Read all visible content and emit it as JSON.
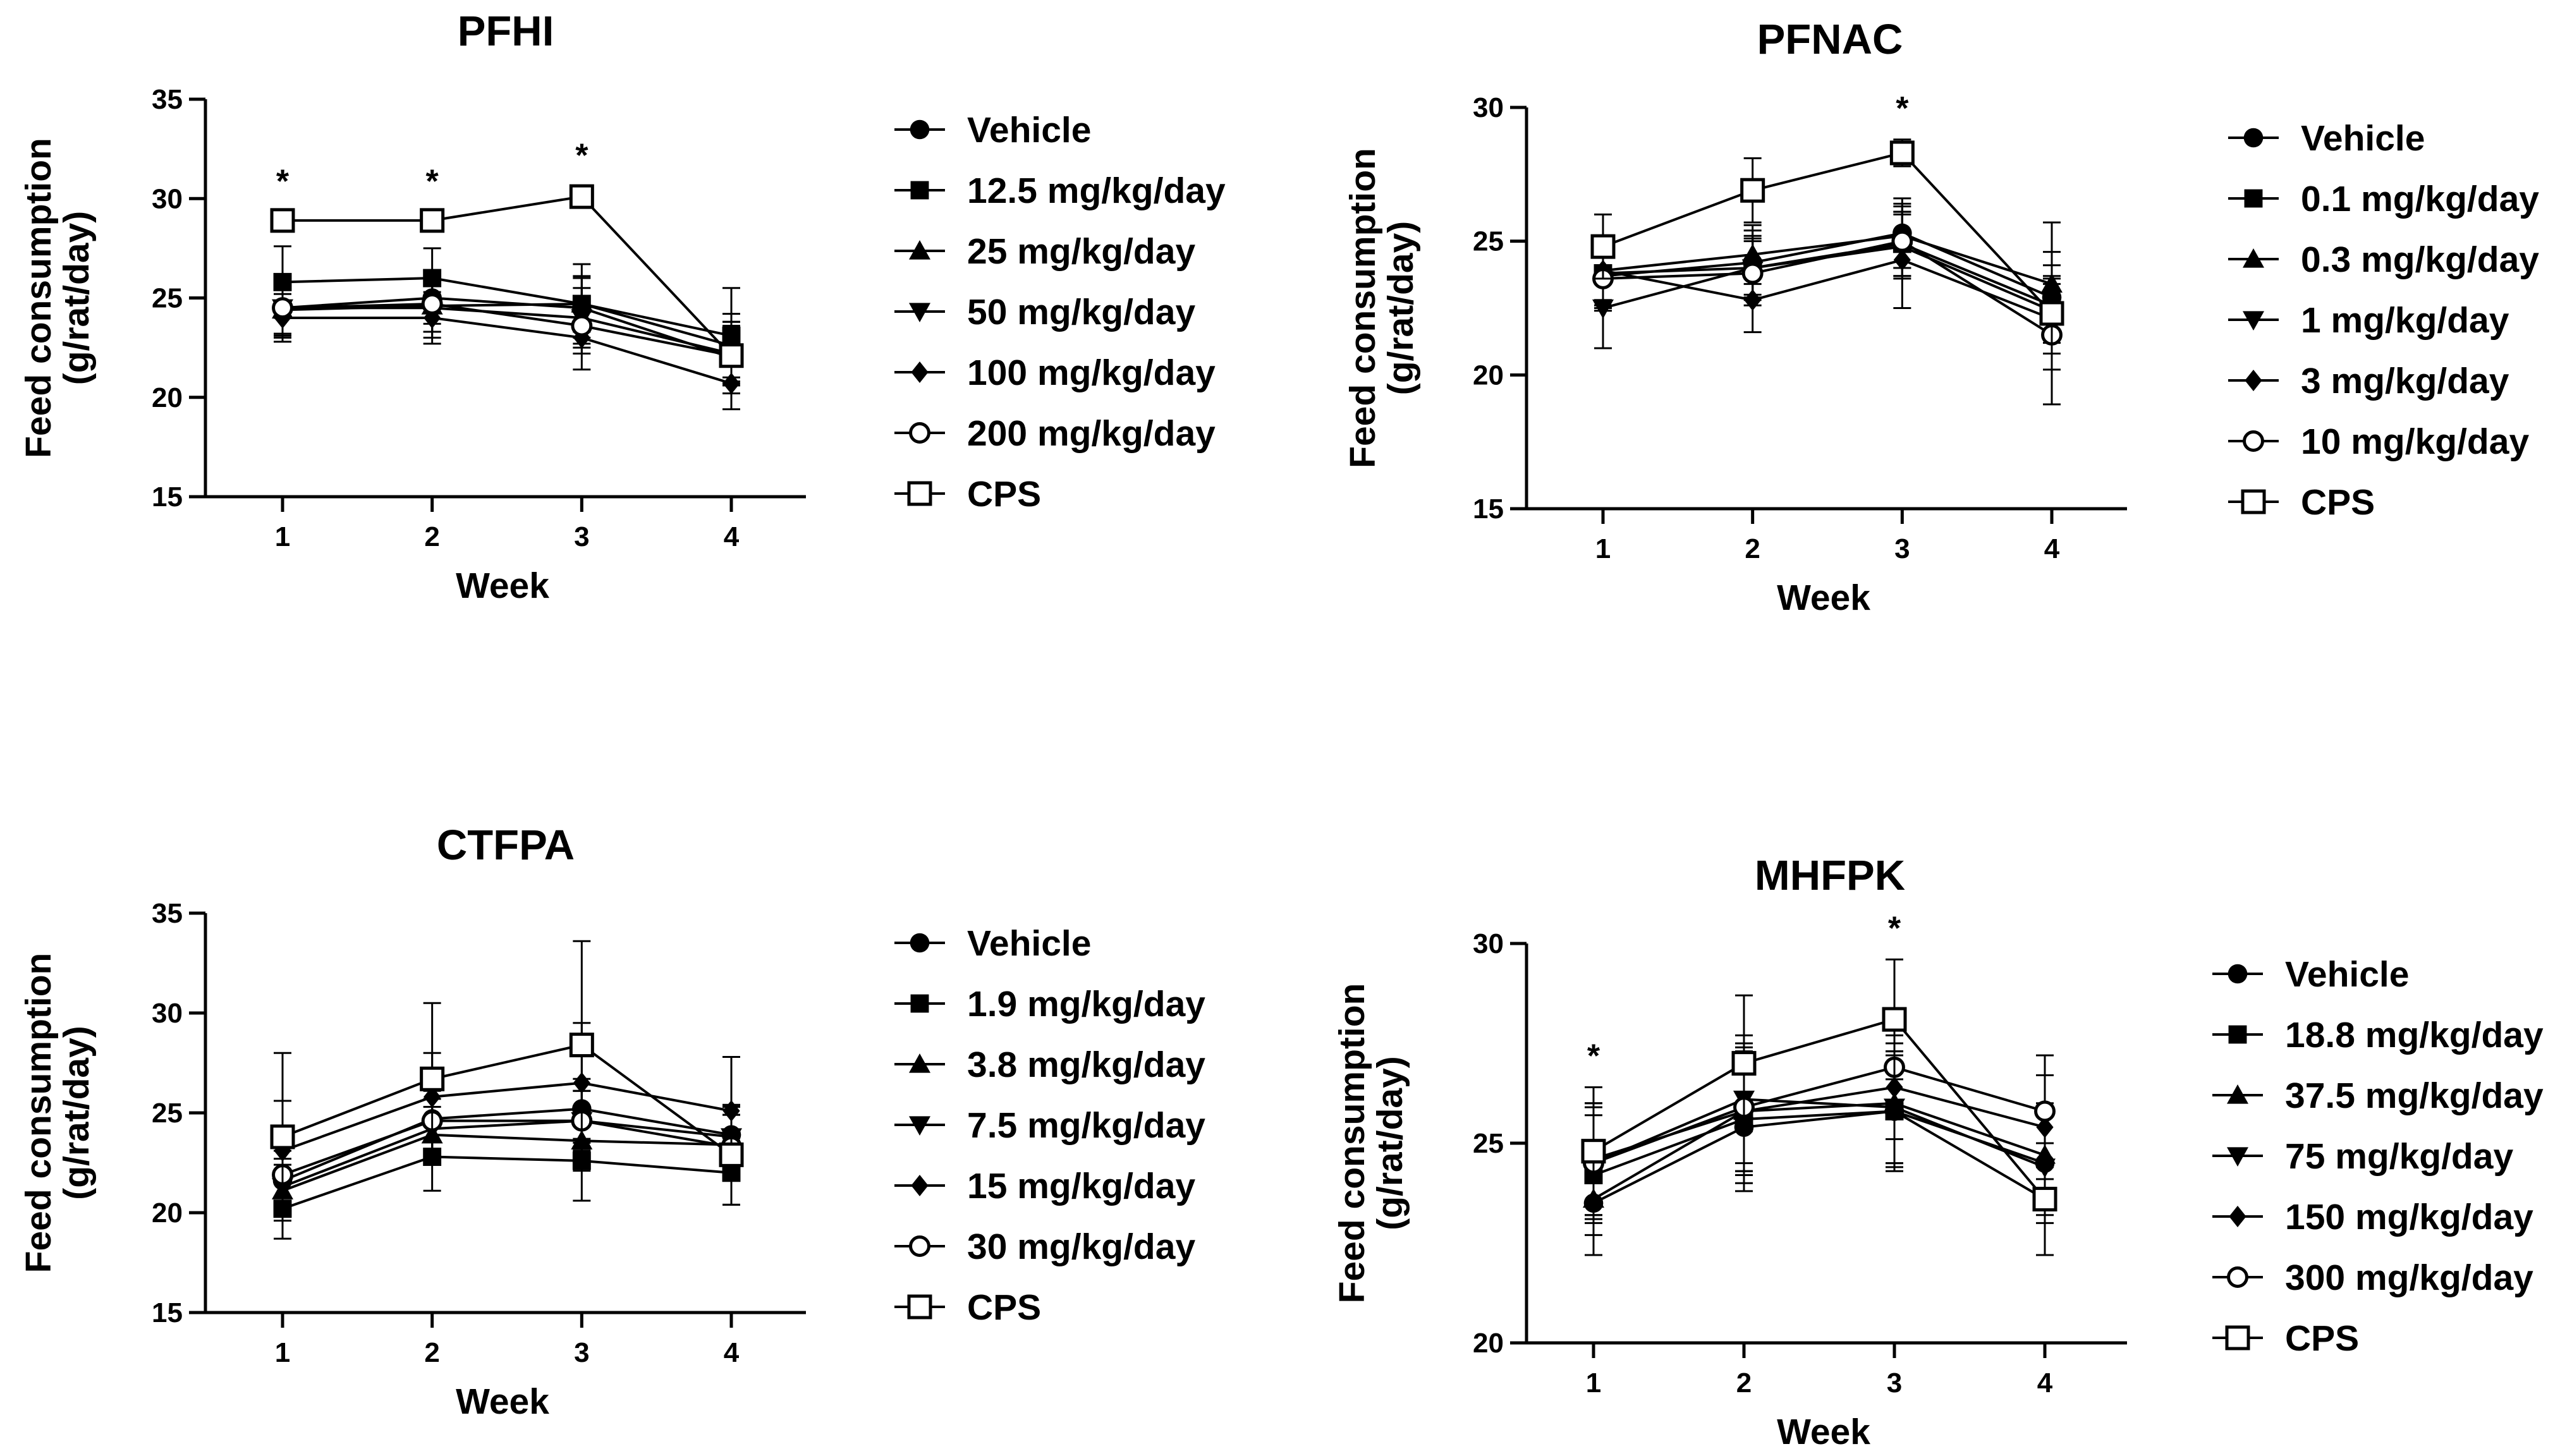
{
  "chart_data": [
    {
      "type": "line",
      "title": "PFHI",
      "xlabel": "Week",
      "ylabel": "Feed consumption\n(g/rat/day)",
      "x": [
        1,
        2,
        3,
        4
      ],
      "ylim": [
        15,
        35
      ],
      "yticks": [
        15,
        20,
        25,
        30,
        35
      ],
      "significance_markers": [
        "*",
        "*",
        "*",
        ""
      ],
      "series": [
        {
          "name": "Vehicle",
          "marker": "circle-filled",
          "values": [
            24.5,
            25.0,
            24.5,
            22.0
          ],
          "errors": [
            1.5,
            1.3,
            1.5,
            1.8
          ]
        },
        {
          "name": "12.5 mg/kg/day",
          "marker": "square-filled",
          "values": [
            25.8,
            26.0,
            24.7,
            23.1
          ],
          "errors": [
            1.8,
            1.5,
            2.0,
            2.4
          ]
        },
        {
          "name": "25 mg/kg/day",
          "marker": "triangle-up-filled",
          "values": [
            24.4,
            24.6,
            24.7,
            22.6
          ],
          "errors": [
            1.3,
            1.3,
            1.4,
            1.6
          ]
        },
        {
          "name": "50 mg/kg/day",
          "marker": "triangle-down-filled",
          "values": [
            24.5,
            24.5,
            24.0,
            22.2
          ],
          "errors": [
            1.3,
            1.5,
            1.5,
            1.6
          ]
        },
        {
          "name": "100 mg/kg/day",
          "marker": "diamond-filled",
          "values": [
            24.0,
            24.0,
            23.0,
            20.7
          ],
          "errors": [
            1.2,
            1.3,
            1.6,
            1.3
          ]
        },
        {
          "name": "200 mg/kg/day",
          "marker": "circle-open",
          "values": [
            24.5,
            24.7,
            23.6,
            22.1
          ],
          "errors": [
            1.3,
            1.4,
            1.4,
            1.5
          ]
        },
        {
          "name": "CPS",
          "marker": "square-open",
          "values": [
            28.9,
            28.9,
            30.1,
            22.1
          ],
          "errors": [
            0.4,
            0.4,
            0.5,
            1.3
          ]
        }
      ]
    },
    {
      "type": "line",
      "title": "PFNAC",
      "xlabel": "Week",
      "ylabel": "Feed consumption\n(g/rat/day)",
      "x": [
        1,
        2,
        3,
        4
      ],
      "ylim": [
        15,
        30
      ],
      "yticks": [
        15,
        20,
        25,
        30
      ],
      "significance_markers": [
        "",
        "",
        "*",
        ""
      ],
      "series": [
        {
          "name": "Vehicle",
          "marker": "circle-filled",
          "values": [
            23.7,
            24.2,
            25.3,
            22.9
          ],
          "errors": [
            1.2,
            1.2,
            1.3,
            1.2
          ]
        },
        {
          "name": "0.1 mg/kg/day",
          "marker": "square-filled",
          "values": [
            23.8,
            24.0,
            24.9,
            22.6
          ],
          "errors": [
            1.2,
            1.1,
            1.2,
            1.1
          ]
        },
        {
          "name": "0.3 mg/kg/day",
          "marker": "triangle-up-filled",
          "values": [
            23.9,
            24.5,
            25.2,
            23.4
          ],
          "errors": [
            1.1,
            1.1,
            1.2,
            1.2
          ]
        },
        {
          "name": "1 mg/kg/day",
          "marker": "triangle-down-filled",
          "values": [
            22.5,
            24.0,
            24.8,
            22.4
          ],
          "errors": [
            1.5,
            1.2,
            1.2,
            1.2
          ]
        },
        {
          "name": "3 mg/kg/day",
          "marker": "diamond-filled",
          "values": [
            23.9,
            22.8,
            24.3,
            22.1
          ],
          "errors": [
            1.3,
            1.2,
            1.8,
            1.3
          ]
        },
        {
          "name": "10 mg/kg/day",
          "marker": "circle-open",
          "values": [
            23.6,
            23.8,
            25.0,
            21.5
          ],
          "errors": [
            1.2,
            1.2,
            1.3,
            1.3
          ]
        },
        {
          "name": "CPS",
          "marker": "square-open",
          "values": [
            24.8,
            26.9,
            28.3,
            22.3
          ],
          "errors": [
            1.2,
            1.2,
            0.5,
            3.4
          ]
        }
      ]
    },
    {
      "type": "line",
      "title": "CTFPA",
      "xlabel": "Week",
      "ylabel": "Feed consumption\n(g/rat/day)",
      "x": [
        1,
        2,
        3,
        4
      ],
      "ylim": [
        15,
        35
      ],
      "yticks": [
        15,
        20,
        25,
        30,
        35
      ],
      "significance_markers": [
        "",
        "",
        "",
        ""
      ],
      "series": [
        {
          "name": "Vehicle",
          "marker": "circle-filled",
          "values": [
            21.6,
            24.7,
            25.2,
            23.9
          ],
          "errors": [
            1.5,
            1.6,
            1.5,
            1.5
          ]
        },
        {
          "name": "1.9 mg/kg/day",
          "marker": "square-filled",
          "values": [
            20.2,
            22.8,
            22.6,
            22.0
          ],
          "errors": [
            1.5,
            1.7,
            2.0,
            1.6
          ]
        },
        {
          "name": "3.8 mg/kg/day",
          "marker": "triangle-up-filled",
          "values": [
            21.1,
            23.9,
            23.6,
            23.4
          ],
          "errors": [
            1.3,
            1.4,
            1.5,
            1.5
          ]
        },
        {
          "name": "7.5 mg/kg/day",
          "marker": "triangle-down-filled",
          "values": [
            21.3,
            24.2,
            24.6,
            23.8
          ],
          "errors": [
            1.4,
            1.5,
            1.5,
            1.5
          ]
        },
        {
          "name": "15 mg/kg/day",
          "marker": "diamond-filled",
          "values": [
            23.1,
            25.8,
            26.5,
            25.1
          ],
          "errors": [
            2.5,
            2.2,
            3.0,
            2.7
          ]
        },
        {
          "name": "30 mg/kg/day",
          "marker": "circle-open",
          "values": [
            21.9,
            24.6,
            24.6,
            23.3
          ],
          "errors": [
            1.4,
            1.5,
            1.5,
            1.6
          ]
        },
        {
          "name": "CPS",
          "marker": "square-open",
          "values": [
            23.8,
            26.7,
            28.4,
            22.9
          ],
          "errors": [
            4.2,
            3.8,
            5.2,
            2.5
          ]
        }
      ]
    },
    {
      "type": "line",
      "title": "MHFPK",
      "xlabel": "Week",
      "ylabel": "Feed consumption\n(g/rat/day)",
      "x": [
        1,
        2,
        3,
        4
      ],
      "ylim": [
        20,
        30
      ],
      "yticks": [
        20,
        25,
        30
      ],
      "significance_markers": [
        "*",
        "",
        "*",
        ""
      ],
      "series": [
        {
          "name": "Vehicle",
          "marker": "circle-filled",
          "values": [
            23.5,
            25.4,
            25.8,
            24.5
          ],
          "errors": [
            1.3,
            1.6,
            1.5,
            1.3
          ]
        },
        {
          "name": "18.8 mg/kg/day",
          "marker": "square-filled",
          "values": [
            24.2,
            25.6,
            25.8,
            23.6
          ],
          "errors": [
            1.5,
            1.6,
            1.4,
            1.4
          ]
        },
        {
          "name": "37.5 mg/kg/day",
          "marker": "triangle-up-filled",
          "values": [
            23.6,
            25.8,
            26.0,
            24.7
          ],
          "errors": [
            1.4,
            1.6,
            1.5,
            1.3
          ]
        },
        {
          "name": "75 mg/kg/day",
          "marker": "triangle-down-filled",
          "values": [
            24.5,
            26.1,
            25.9,
            24.4
          ],
          "errors": [
            1.5,
            1.6,
            1.4,
            1.4
          ]
        },
        {
          "name": "150 mg/kg/day",
          "marker": "diamond-filled",
          "values": [
            24.6,
            25.8,
            26.4,
            25.4
          ],
          "errors": [
            1.4,
            1.5,
            1.3,
            1.3
          ]
        },
        {
          "name": "300 mg/kg/day",
          "marker": "circle-open",
          "values": [
            24.5,
            25.9,
            26.9,
            25.8
          ],
          "errors": [
            1.4,
            1.6,
            1.3,
            1.4
          ]
        },
        {
          "name": "CPS",
          "marker": "square-open",
          "values": [
            24.8,
            27.0,
            28.1,
            23.6
          ],
          "errors": [
            1.6,
            1.7,
            1.5,
            1.4
          ]
        }
      ]
    }
  ]
}
